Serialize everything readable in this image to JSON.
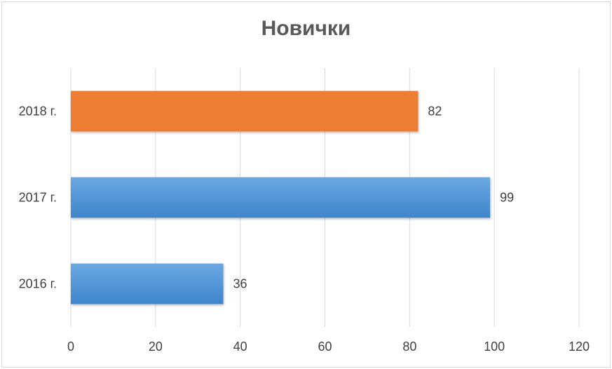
{
  "chart_data": {
    "type": "bar",
    "orientation": "horizontal",
    "title": "Новички",
    "categories": [
      "2016 г.",
      "2017 г.",
      "2018 г."
    ],
    "values": [
      36,
      99,
      82
    ],
    "bar_colors": [
      "#5b9bd5",
      "#5b9bd5",
      "#ed7d31"
    ],
    "xlim": [
      0,
      120
    ],
    "xticks": [
      0,
      20,
      40,
      60,
      80,
      100,
      120
    ],
    "grid": "vertical",
    "data_labels": true,
    "legend": "none"
  }
}
